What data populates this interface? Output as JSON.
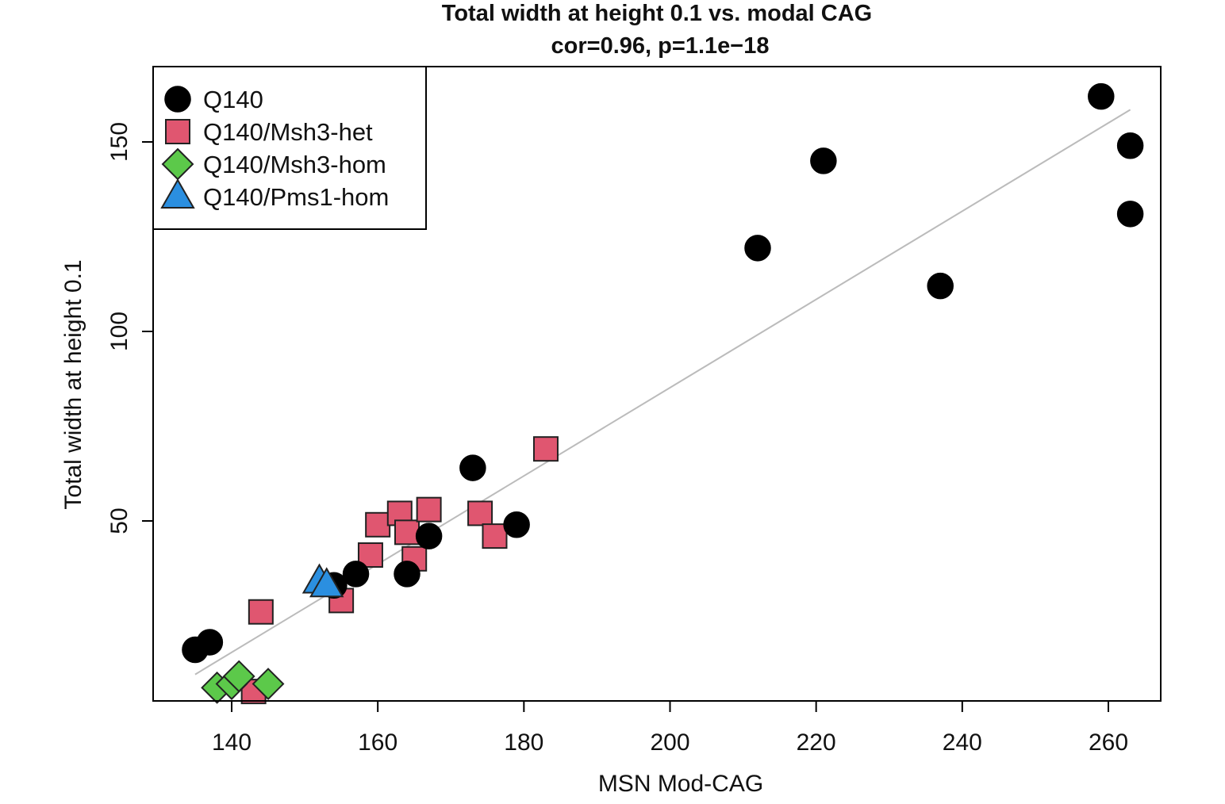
{
  "chart_data": {
    "type": "scatter",
    "title": "Total width at height 0.1 vs. modal CAG",
    "subtitle": "cor=0.96, p=1.1e−18",
    "xlabel": "MSN Mod-CAG",
    "ylabel": "Total width at height 0.1",
    "xlim": [
      130,
      268
    ],
    "ylim": [
      0,
      168
    ],
    "x_ticks": [
      140,
      160,
      180,
      200,
      220,
      240,
      260
    ],
    "y_ticks": [
      50,
      100,
      150
    ],
    "legend_position": "top-left",
    "fit_line": {
      "x": [
        135,
        263
      ],
      "y": [
        9.5,
        158.5
      ],
      "color": "#bbbbbb"
    },
    "series": [
      {
        "name": "Q140",
        "marker": "circle",
        "color": "#000000",
        "points": [
          [
            135,
            16
          ],
          [
            137,
            18
          ],
          [
            154,
            33
          ],
          [
            157,
            36
          ],
          [
            164,
            36
          ],
          [
            167,
            46
          ],
          [
            173,
            64
          ],
          [
            179,
            49
          ],
          [
            212,
            122
          ],
          [
            221,
            145
          ],
          [
            237,
            112
          ],
          [
            259,
            162
          ],
          [
            263,
            149
          ],
          [
            263,
            131
          ]
        ]
      },
      {
        "name": "Q140/Msh3-het",
        "marker": "square",
        "color": "#e05670",
        "points": [
          [
            144,
            26
          ],
          [
            155,
            29
          ],
          [
            159,
            41
          ],
          [
            160,
            49
          ],
          [
            163,
            52
          ],
          [
            164,
            47
          ],
          [
            165,
            40
          ],
          [
            167,
            53
          ],
          [
            174,
            52
          ],
          [
            176,
            46
          ],
          [
            183,
            69
          ],
          [
            143,
            5
          ]
        ]
      },
      {
        "name": "Q140/Msh3-hom",
        "marker": "diamond",
        "color": "#5cc94a",
        "points": [
          [
            138,
            6
          ],
          [
            140,
            7
          ],
          [
            141,
            9
          ],
          [
            145,
            7
          ]
        ]
      },
      {
        "name": "Q140/Pms1-hom",
        "marker": "triangle",
        "color": "#2b8fe0",
        "points": [
          [
            152,
            34
          ],
          [
            153,
            33
          ]
        ]
      }
    ]
  }
}
